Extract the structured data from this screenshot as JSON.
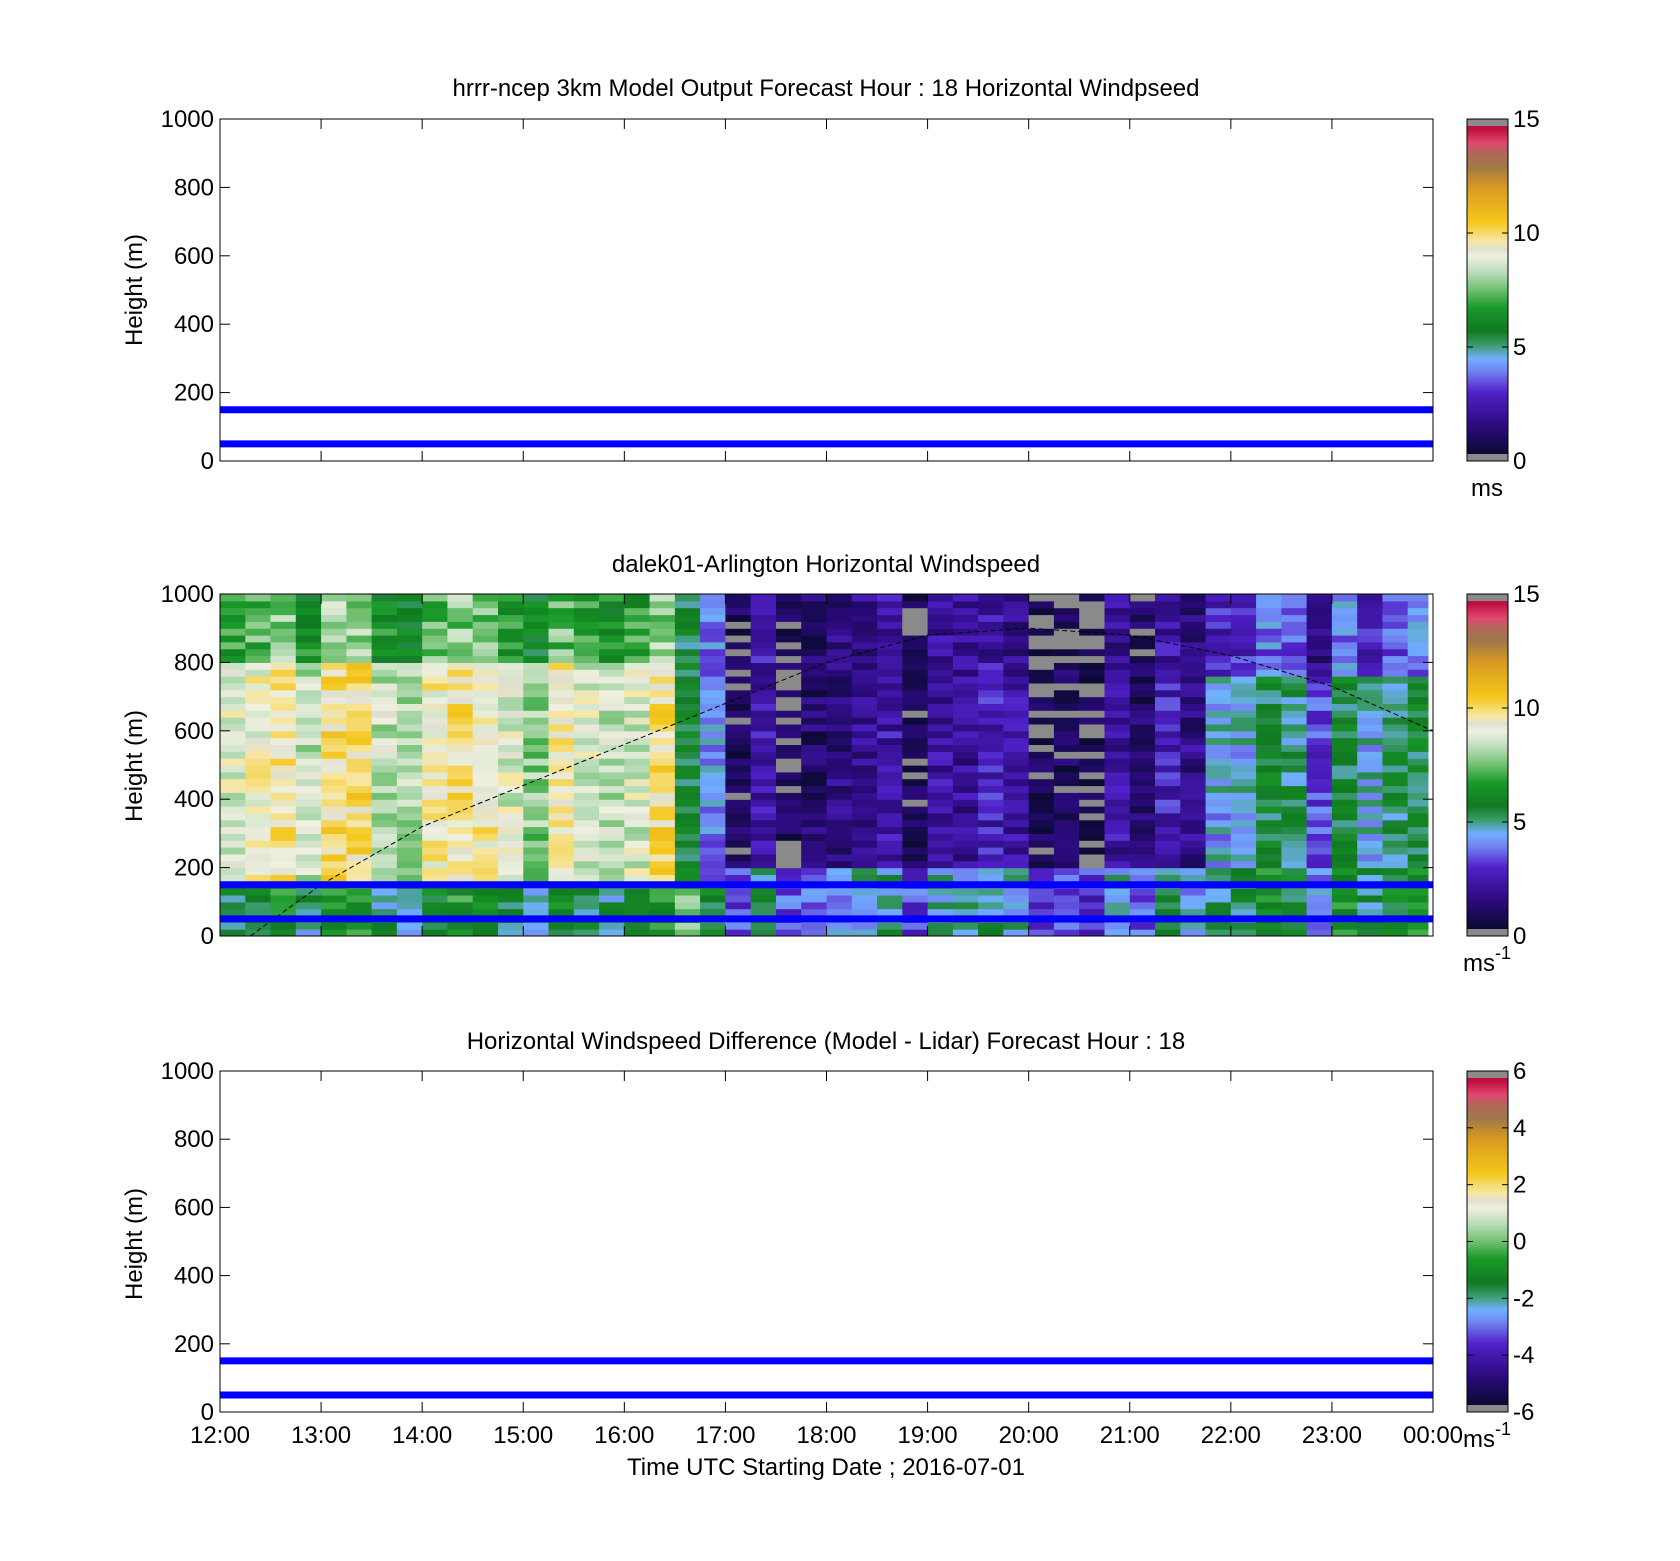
{
  "figure": {
    "xlabel": "Time UTC  Starting Date ; 2016-07-01"
  },
  "chart_data": [
    {
      "type": "line",
      "title": "hrrr-ncep 3km Model Output   Forecast Hour : 18 Horizontal Windpseed",
      "ylabel": "Height (m)",
      "xlim": [
        12,
        24
      ],
      "ylim": [
        0,
        1000
      ],
      "yticks": [
        0,
        200,
        400,
        600,
        800,
        1000
      ],
      "xticks": [
        12,
        13,
        14,
        15,
        16,
        17,
        18,
        19,
        20,
        21,
        22,
        23,
        24
      ],
      "hlines": [
        50,
        150
      ],
      "hline_color": "#0000ff",
      "colorbar": {
        "min": 0,
        "max": 15,
        "ticks": [
          0,
          5,
          10,
          15
        ],
        "unit": "ms",
        "unit_sup": ""
      }
    },
    {
      "type": "heatmap",
      "title": "dalek01-Arlington  Horizontal Windspeed",
      "ylabel": "Height (m)",
      "xlim": [
        12,
        24
      ],
      "ylim": [
        0,
        1000
      ],
      "yticks": [
        0,
        200,
        400,
        600,
        800,
        1000
      ],
      "xticks": [
        12,
        13,
        14,
        15,
        16,
        17,
        18,
        19,
        20,
        21,
        22,
        23,
        24
      ],
      "hlines": [
        50,
        150
      ],
      "hline_color": "#0000ff",
      "colorbar": {
        "min": 0,
        "max": 15,
        "ticks": [
          0,
          5,
          10,
          15
        ],
        "unit": "ms",
        "unit_sup": "-1"
      },
      "heatmap": {
        "time_bin_hours": 0.25,
        "data_end_time": 23.95,
        "height_bin_m": 20,
        "column_profiles": [
          {
            "t0": 12.0,
            "t1": 16.5,
            "low_top": 150,
            "low_value": 5.5,
            "bl_top": 800,
            "bl_value": 8.8,
            "upper_value": 6.8
          },
          {
            "t0": 16.5,
            "t1": 17.0,
            "low_top": 150,
            "low_value": 6.5,
            "bl_top": 1000,
            "bl_value": 4.8,
            "upper_value": 4.8
          },
          {
            "t0": 17.0,
            "t1": 19.5,
            "low_top": 200,
            "low_value": 4.5,
            "bl_top": 800,
            "bl_value": 1.8,
            "upper_value": 1.8
          },
          {
            "t0": 19.5,
            "t1": 21.75,
            "low_top": 200,
            "low_value": 4.0,
            "bl_top": 800,
            "bl_value": 1.5,
            "upper_value": 1.2
          },
          {
            "t0": 21.75,
            "t1": 24.0,
            "low_top": 200,
            "low_value": 5.2,
            "bl_top": 750,
            "bl_value": 4.5,
            "upper_value": 2.8
          }
        ]
      },
      "mixing_height_curve": {
        "style": "dashed",
        "points": [
          [
            12.3,
            0
          ],
          [
            13.0,
            150
          ],
          [
            14.0,
            320
          ],
          [
            15.0,
            440
          ],
          [
            16.0,
            560
          ],
          [
            17.0,
            680
          ],
          [
            18.0,
            800
          ],
          [
            19.0,
            880
          ],
          [
            20.0,
            900
          ],
          [
            21.0,
            880
          ],
          [
            22.0,
            820
          ],
          [
            23.0,
            730
          ],
          [
            24.0,
            600
          ]
        ]
      }
    },
    {
      "type": "line",
      "title": "Horizontal Windspeed Difference (Model - Lidar) Forecast Hour : 18",
      "ylabel": "Height (m)",
      "xlim": [
        12,
        24
      ],
      "ylim": [
        0,
        1000
      ],
      "yticks": [
        0,
        200,
        400,
        600,
        800,
        1000
      ],
      "xticks": [
        12,
        13,
        14,
        15,
        16,
        17,
        18,
        19,
        20,
        21,
        22,
        23,
        24
      ],
      "xticklabels": [
        "12:00",
        "13:00",
        "14:00",
        "15:00",
        "16:00",
        "17:00",
        "18:00",
        "19:00",
        "20:00",
        "21:00",
        "22:00",
        "23:00",
        "00:00"
      ],
      "hlines": [
        50,
        150
      ],
      "hline_color": "#0000ff",
      "colorbar": {
        "min": -6,
        "max": 6,
        "ticks": [
          -6,
          -4,
          -2,
          0,
          2,
          4,
          6
        ],
        "unit": "ms",
        "unit_sup": "-1"
      }
    }
  ],
  "colormaps": {
    "speed_stops": [
      [
        0.0,
        "#8a8a8a"
      ],
      [
        0.02,
        "#8a8a8a"
      ],
      [
        0.021,
        "#0a0a32"
      ],
      [
        0.1,
        "#2a0a7a"
      ],
      [
        0.2,
        "#5020c8"
      ],
      [
        0.26,
        "#7080f0"
      ],
      [
        0.3,
        "#70b0ff"
      ],
      [
        0.34,
        "#3a9a6a"
      ],
      [
        0.38,
        "#107a20"
      ],
      [
        0.45,
        "#1a9a2a"
      ],
      [
        0.55,
        "#b8dcb8"
      ],
      [
        0.5,
        "#70c070"
      ],
      [
        0.6,
        "#f0f0e0"
      ],
      [
        0.62,
        "#e0e0d0"
      ],
      [
        0.64,
        "#f6e8a8"
      ],
      [
        0.7,
        "#f5c71c"
      ],
      [
        0.8,
        "#d89a20"
      ],
      [
        0.86,
        "#a07848"
      ],
      [
        0.9,
        "#b06858"
      ],
      [
        0.93,
        "#e04870"
      ],
      [
        0.97,
        "#c01040"
      ],
      [
        0.979,
        "#c01040"
      ],
      [
        0.98,
        "#8a8a8a"
      ],
      [
        1.0,
        "#8a8a8a"
      ]
    ]
  }
}
